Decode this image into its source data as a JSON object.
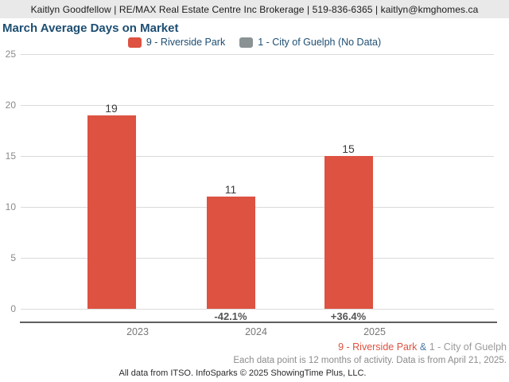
{
  "header": {
    "contact_line": "Kaitlyn Goodfellow | RE/MAX Real Estate Centre Inc Brokerage | 519-836-6365 | kaitlyn@kmghomes.ca"
  },
  "title": "March Average Days on Market",
  "legend": {
    "items": [
      {
        "label": "9 - Riverside Park",
        "color": "#dd5241"
      },
      {
        "label": "1 - City of Guelph (No Data)",
        "color": "#8a9294"
      }
    ]
  },
  "chart_data": {
    "type": "bar",
    "title": "March Average Days on Market",
    "categories": [
      "2023",
      "2024",
      "2025"
    ],
    "series": [
      {
        "name": "9 - Riverside Park",
        "color": "#dd5241",
        "values": [
          19,
          11,
          15
        ]
      },
      {
        "name": "1 - City of Guelph",
        "color": "#8a9294",
        "values": [
          null,
          null,
          null
        ],
        "note": "No Data"
      }
    ],
    "value_labels": [
      "19",
      "11",
      "15"
    ],
    "pct_change_labels": [
      "",
      "-42.1%",
      "+36.4%"
    ],
    "ylim": [
      0,
      25
    ],
    "yticks": [
      0,
      5,
      10,
      15,
      20,
      25
    ],
    "grid": true,
    "legend_position": "top",
    "xlabel": "",
    "ylabel": ""
  },
  "footnotes": {
    "series_line": {
      "primary": "9 - Riverside Park",
      "separator": "&",
      "secondary": "1 - City of Guelph"
    },
    "data_note": "Each data point is 12 months of activity. Data is from April 21, 2025.",
    "attribution": "All data from ITSO. InfoSparks © 2025 ShowingTime Plus, LLC."
  },
  "colors": {
    "bar_primary": "#dd5241",
    "bar_secondary": "#8a9294",
    "title_text": "#1d4e72",
    "header_background": "#e9e9e9",
    "gridline": "#dadada",
    "axis_line": "#5f5f5f"
  }
}
